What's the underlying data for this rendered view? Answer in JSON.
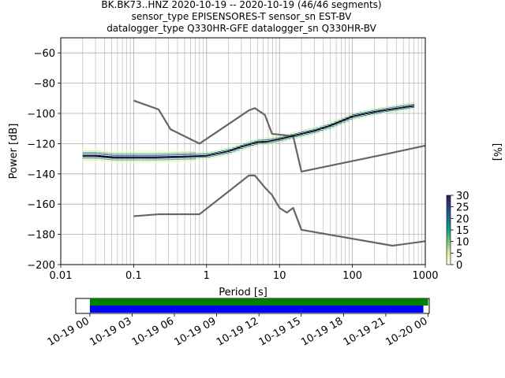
{
  "title_lines": [
    "BK.BK73..HNZ   2020-10-19 -- 2020-10-19  (46/46 segments)",
    "sensor_type EPISENSORES-T sensor_sn EST-BV",
    "datalogger_type Q330HR-GFE datalogger_sn Q330HR-BV"
  ],
  "chart_data": [
    {
      "type": "heatmap",
      "title": "BK.BK73..HNZ   2020-10-19 -- 2020-10-19  (46/46 segments)",
      "xlabel": "Period [s]",
      "ylabel": "Power [dB]",
      "xscale": "log",
      "xlim": [
        0.01,
        1000
      ],
      "ylim": [
        -200,
        -50
      ],
      "xtick_labels": [
        "0.01",
        "0.1",
        "1",
        "10",
        "100",
        "1000"
      ],
      "xtick_values": [
        0.01,
        0.1,
        1,
        10,
        100,
        1000
      ],
      "ytick_values": [
        -200,
        -180,
        -160,
        -140,
        -120,
        -100,
        -80,
        -60
      ],
      "grid": true,
      "colorbar": {
        "label": "[%]",
        "ticks": [
          0,
          5,
          10,
          15,
          20,
          25,
          30
        ],
        "range": [
          0,
          30
        ],
        "colors": [
          "#ffffe5",
          "#d9f0a3",
          "#78c679",
          "#1d9e82",
          "#1b6f8f",
          "#2c3f8c",
          "#2d1e5e"
        ]
      },
      "series": [
        {
          "name": "",
          "style": "gray-noise-model",
          "color": "#666666",
          "x": [
            0.1,
            0.22,
            0.32,
            0.8,
            3.8,
            4.6,
            6.3,
            7.9,
            10.0,
            12.6,
            15.4,
            20.0,
            354.8,
            10000
          ],
          "y": [
            -168,
            -166.7,
            -166.7,
            -166.7,
            -141.1,
            -141.1,
            -149.0,
            -154.0,
            -162.5,
            -165.6,
            -162.5,
            -177.0,
            -187.5,
            -178.0
          ]
        },
        {
          "name": "",
          "style": "gray-noise-model",
          "color": "#666666",
          "x": [
            0.1,
            0.22,
            0.32,
            0.8,
            3.8,
            4.6,
            6.3,
            7.9,
            15.4,
            20.0,
            354.8,
            10000
          ],
          "y": [
            -91.5,
            -97.4,
            -110.5,
            -120.0,
            -98.0,
            -96.5,
            -101.0,
            -113.5,
            -115.0,
            -138.5,
            -126.0,
            -111.0
          ]
        },
        {
          "name": "",
          "style": "mode-line",
          "color": "#000000",
          "x": [
            0.02,
            0.03,
            0.05,
            0.1,
            0.2,
            0.5,
            1,
            2,
            3,
            5,
            7,
            10,
            20,
            30,
            50,
            100,
            200,
            500,
            700
          ],
          "y": [
            -128,
            -128,
            -129,
            -129,
            -129,
            -128.5,
            -128,
            -125,
            -122,
            -119,
            -118.5,
            -117,
            -113.5,
            -111.5,
            -108,
            -102,
            -99,
            -96,
            -95
          ]
        }
      ]
    },
    {
      "type": "bar",
      "title": "",
      "xlabel": "",
      "ylabel": "",
      "xtick_labels": [
        "10-19 00",
        "10-19 03",
        "10-19 06",
        "10-19 09",
        "10-19 12",
        "10-19 15",
        "10-19 18",
        "10-19 21",
        "10-20 00"
      ],
      "xlim": [
        "2020-10-18 23:00",
        "2020-10-20 00:05"
      ],
      "series": [
        {
          "name": "",
          "color": "#008000",
          "start": "2020-10-19 00:00",
          "end": "2020-10-20 00:00"
        },
        {
          "name": "",
          "color": "#0000ff",
          "start": "2020-10-19 00:00",
          "end": "2020-10-19 23:40"
        }
      ]
    }
  ]
}
